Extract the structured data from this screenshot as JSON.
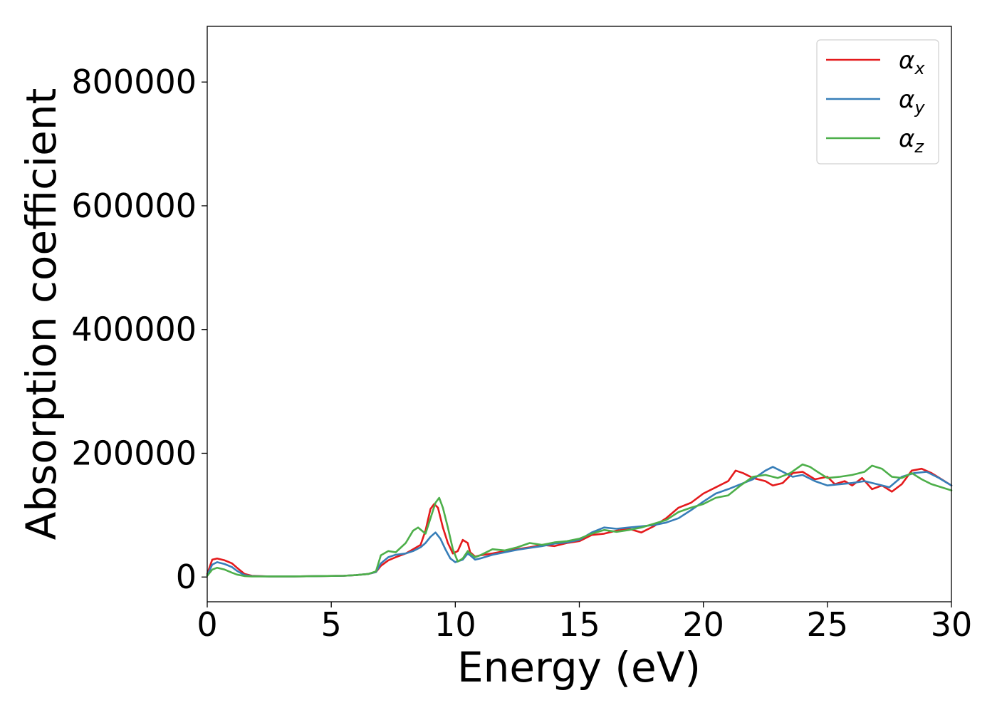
{
  "chart_data": {
    "type": "line",
    "title": "",
    "xlabel": "Energy (eV)",
    "ylabel": "Absorption coefficient",
    "xlim": [
      0,
      30
    ],
    "ylim": [
      -40000,
      890000
    ],
    "xticks": [
      0,
      5,
      10,
      15,
      20,
      25,
      30
    ],
    "yticks": [
      0,
      200000,
      400000,
      600000,
      800000
    ],
    "grid": false,
    "legend_position": "top-right",
    "series": [
      {
        "name": "α_x",
        "label_main": "α",
        "label_sub": "x",
        "color": "#e41a1c",
        "x": [
          0,
          0.2,
          0.4,
          0.7,
          1.0,
          1.2,
          1.5,
          1.8,
          2.5,
          3.5,
          4.5,
          5.5,
          6.0,
          6.5,
          6.8,
          7.0,
          7.3,
          7.6,
          8.0,
          8.3,
          8.6,
          8.8,
          9.0,
          9.15,
          9.3,
          9.5,
          9.7,
          9.9,
          10.1,
          10.3,
          10.5,
          10.6,
          10.8,
          11.0,
          11.5,
          12.0,
          12.5,
          13.0,
          13.5,
          14.0,
          14.5,
          15.0,
          15.5,
          16.0,
          16.5,
          17.0,
          17.5,
          18.0,
          18.5,
          19.0,
          19.5,
          20.0,
          20.5,
          21.0,
          21.3,
          21.6,
          22.0,
          22.5,
          22.8,
          23.2,
          23.6,
          24.0,
          24.5,
          25.0,
          25.3,
          25.7,
          26.0,
          26.4,
          26.8,
          27.2,
          27.6,
          28.0,
          28.4,
          28.8,
          29.2,
          29.6,
          30.0
        ],
        "y": [
          5000,
          28000,
          30000,
          27000,
          22000,
          15000,
          5000,
          2000,
          1000,
          1000,
          1500,
          2000,
          3000,
          5000,
          8000,
          18000,
          27000,
          32000,
          38000,
          45000,
          52000,
          75000,
          110000,
          118000,
          112000,
          80000,
          55000,
          38000,
          42000,
          60000,
          55000,
          40000,
          33000,
          35000,
          38000,
          42000,
          45000,
          48000,
          52000,
          50000,
          55000,
          58000,
          68000,
          70000,
          75000,
          78000,
          72000,
          82000,
          95000,
          112000,
          120000,
          135000,
          145000,
          155000,
          172000,
          168000,
          160000,
          155000,
          148000,
          152000,
          168000,
          170000,
          158000,
          162000,
          150000,
          155000,
          148000,
          160000,
          142000,
          148000,
          138000,
          150000,
          172000,
          175000,
          168000,
          158000,
          148000
        ]
      },
      {
        "name": "α_y",
        "label_main": "α",
        "label_sub": "y",
        "color": "#377eb8",
        "x": [
          0,
          0.2,
          0.4,
          0.7,
          1.0,
          1.2,
          1.5,
          1.8,
          2.5,
          3.5,
          4.5,
          5.5,
          6.0,
          6.5,
          6.8,
          7.0,
          7.3,
          7.6,
          8.0,
          8.3,
          8.6,
          8.8,
          9.0,
          9.2,
          9.4,
          9.6,
          9.8,
          10.0,
          10.3,
          10.5,
          10.6,
          10.8,
          11.0,
          11.5,
          12.0,
          12.5,
          13.0,
          13.5,
          14.0,
          14.5,
          15.0,
          15.5,
          16.0,
          16.5,
          17.0,
          17.5,
          18.0,
          18.5,
          19.0,
          19.5,
          20.0,
          20.5,
          21.0,
          21.5,
          22.0,
          22.5,
          22.8,
          23.2,
          23.6,
          24.0,
          24.5,
          25.0,
          25.5,
          26.0,
          26.5,
          27.0,
          27.5,
          28.0,
          28.5,
          29.0,
          29.5,
          30.0
        ],
        "y": [
          3000,
          20000,
          24000,
          21000,
          16000,
          10000,
          3000,
          1500,
          1000,
          1000,
          1500,
          2000,
          3000,
          5000,
          8000,
          22000,
          32000,
          36000,
          38000,
          42000,
          48000,
          55000,
          65000,
          72000,
          62000,
          45000,
          30000,
          24000,
          28000,
          38000,
          35000,
          28000,
          30000,
          36000,
          40000,
          44000,
          47000,
          50000,
          54000,
          56000,
          60000,
          72000,
          80000,
          78000,
          80000,
          82000,
          84000,
          88000,
          95000,
          108000,
          122000,
          135000,
          142000,
          150000,
          158000,
          172000,
          178000,
          170000,
          162000,
          165000,
          155000,
          148000,
          150000,
          152000,
          155000,
          150000,
          145000,
          162000,
          168000,
          170000,
          160000,
          148000
        ]
      },
      {
        "name": "α_z",
        "label_main": "α",
        "label_sub": "z",
        "color": "#4daf4a",
        "x": [
          0,
          0.2,
          0.4,
          0.7,
          1.0,
          1.2,
          1.5,
          1.8,
          2.5,
          3.5,
          4.5,
          5.5,
          6.0,
          6.5,
          6.8,
          7.0,
          7.3,
          7.6,
          8.0,
          8.3,
          8.5,
          8.8,
          9.0,
          9.2,
          9.35,
          9.5,
          9.7,
          9.9,
          10.1,
          10.3,
          10.5,
          10.6,
          10.8,
          11.0,
          11.5,
          12.0,
          12.5,
          13.0,
          13.5,
          14.0,
          14.5,
          15.0,
          15.5,
          16.0,
          16.5,
          17.0,
          17.5,
          18.0,
          18.5,
          19.0,
          19.5,
          20.0,
          20.5,
          21.0,
          21.5,
          22.0,
          22.5,
          23.0,
          23.5,
          24.0,
          24.3,
          24.6,
          25.0,
          25.5,
          26.0,
          26.5,
          26.8,
          27.2,
          27.6,
          28.0,
          28.4,
          28.8,
          29.2,
          29.6,
          30.0
        ],
        "y": [
          2000,
          12000,
          15000,
          12000,
          7000,
          4000,
          1500,
          1000,
          1000,
          1000,
          1500,
          2000,
          3000,
          5000,
          9000,
          35000,
          42000,
          40000,
          55000,
          75000,
          80000,
          70000,
          95000,
          120000,
          128000,
          112000,
          80000,
          45000,
          25000,
          30000,
          42000,
          38000,
          32000,
          35000,
          45000,
          43000,
          48000,
          55000,
          52000,
          56000,
          58000,
          62000,
          70000,
          76000,
          73000,
          76000,
          80000,
          86000,
          92000,
          105000,
          112000,
          118000,
          128000,
          132000,
          148000,
          162000,
          165000,
          160000,
          168000,
          182000,
          178000,
          170000,
          160000,
          162000,
          165000,
          170000,
          180000,
          175000,
          162000,
          160000,
          168000,
          158000,
          150000,
          145000,
          140000
        ]
      }
    ]
  }
}
